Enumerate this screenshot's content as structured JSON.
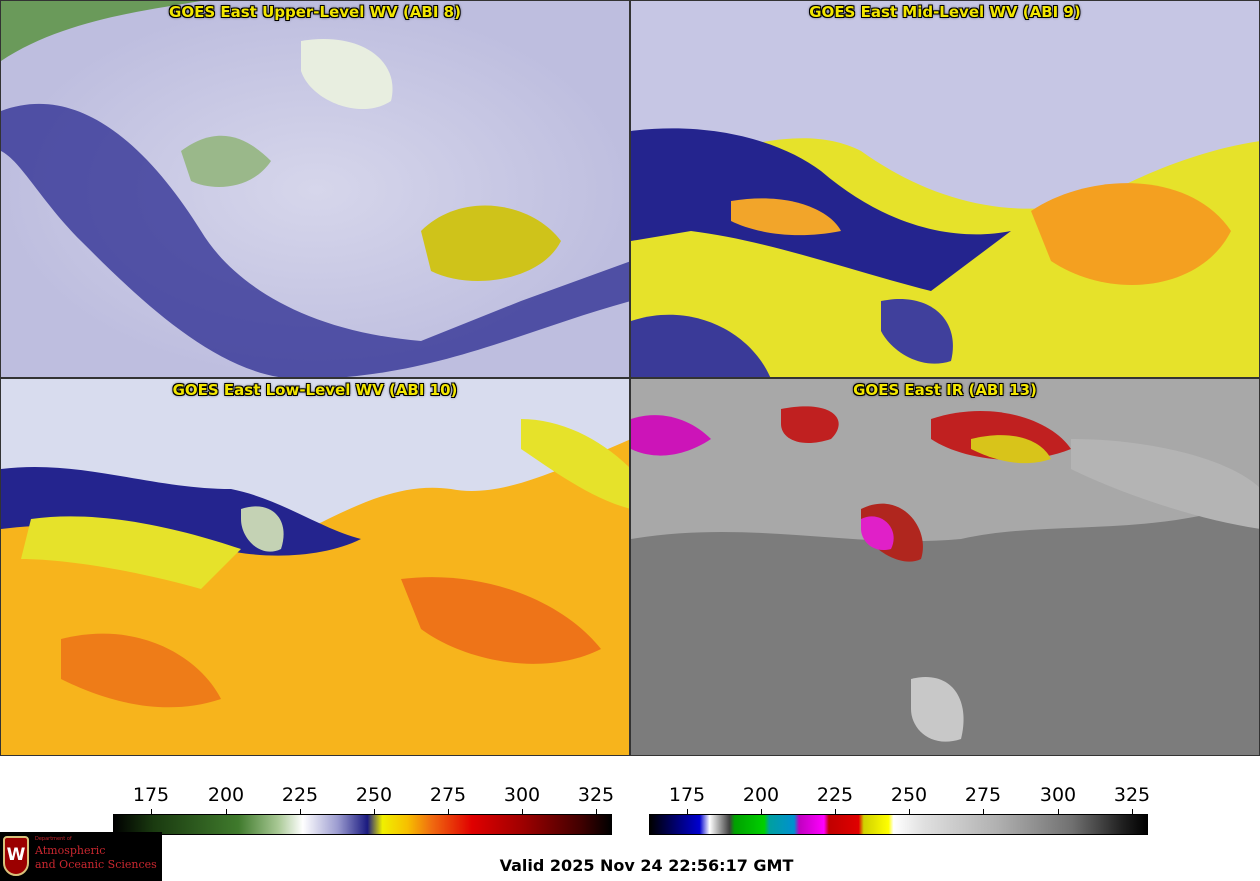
{
  "panels": [
    {
      "title": "GOES East Upper-Level WV (ABI 8)"
    },
    {
      "title": "GOES East Mid-Level WV (ABI 9)"
    },
    {
      "title": "GOES East Low-Level WV (ABI 10)"
    },
    {
      "title": "GOES East IR (ABI 13)"
    }
  ],
  "colorbar_wv": {
    "ticks": [
      "175",
      "200",
      "225",
      "250",
      "275",
      "300",
      "325"
    ]
  },
  "colorbar_ir": {
    "ticks": [
      "175",
      "200",
      "225",
      "250",
      "275",
      "300",
      "325"
    ]
  },
  "valid_time": "Valid 2025 Nov 24 22:56:17 GMT",
  "logo": {
    "department": "Department of",
    "line1": "Atmospheric",
    "line2": "and Oceanic Sciences",
    "crest_letter": "W"
  },
  "colors": {
    "state_borders": "#e03030",
    "coastline": "#1a8a1a",
    "country_border": "#8b4513",
    "title_text": "#f2e600"
  }
}
